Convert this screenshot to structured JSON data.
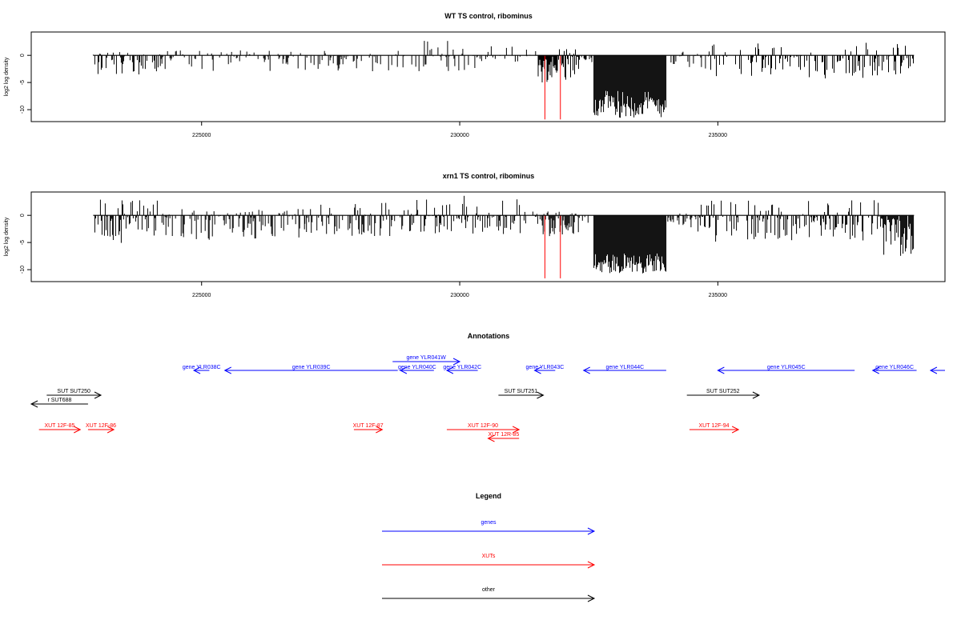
{
  "chart_data": [
    {
      "type": "bar",
      "title": "WT TS control, ribominus",
      "xlabel": "",
      "ylabel": "log2 log density",
      "xlim": [
        221700,
        239400
      ],
      "ylim": [
        -12.2,
        4.3
      ],
      "x_ticks": [
        225000,
        230000,
        235000
      ],
      "y_ticks": [
        0,
        -5,
        -10
      ],
      "grid": false,
      "series": [
        {
          "color": "#000000",
          "segments": [
            {
              "x": [
                222900,
                224200
              ],
              "values": [
                -3.6,
                0.9
              ],
              "density": 0.55
            },
            {
              "x": [
                224200,
                229300
              ],
              "values": [
                -3.0,
                0.9
              ],
              "density": 0.3
            },
            {
              "x": [
                229300,
                230300
              ],
              "values": [
                -3.0,
                2.8
              ],
              "density": 0.4
            },
            {
              "x": [
                230300,
                231300
              ],
              "values": [
                -1.2,
                1.9
              ],
              "density": 0.35
            },
            {
              "x": [
                231300,
                231520
              ],
              "values": [
                -1.2,
                1.2
              ],
              "density": 0.3
            },
            {
              "x": [
                231520,
                231900
              ],
              "values": [
                -5.0,
                0
              ],
              "density": 1.0
            },
            {
              "x": [
                231900,
                232330
              ],
              "values": [
                -4.6,
                1.2
              ],
              "density": 1.0
            },
            {
              "x": [
                232330,
                232420
              ],
              "values": [
                -1.2,
                0
              ],
              "density": 0.5
            },
            {
              "x": [
                232420,
                232600
              ],
              "values": [
                -1.5,
                0
              ],
              "density": 0.5
            },
            {
              "x": [
                232600,
                234000
              ],
              "values": [
                -11.5,
                -6.5
              ],
              "density": 1.0
            },
            {
              "x": [
                234000,
                234800
              ],
              "values": [
                -2.6,
                0.8
              ],
              "density": 0.3
            },
            {
              "x": [
                234800,
                238800
              ],
              "values": [
                -4.3,
                2.4
              ],
              "density": 0.45
            }
          ]
        },
        {
          "color": "#ff0000",
          "x": [
            231650,
            231950
          ],
          "values": [
            -11.8,
            -11.8
          ]
        }
      ]
    },
    {
      "type": "bar",
      "title": "xrn1 TS control, ribominus",
      "xlabel": "",
      "ylabel": "log2 log density",
      "xlim": [
        221700,
        239400
      ],
      "ylim": [
        -12.2,
        4.3
      ],
      "x_ticks": [
        225000,
        230000,
        235000
      ],
      "y_ticks": [
        0,
        -5,
        -10
      ],
      "grid": false,
      "series": [
        {
          "color": "#000000",
          "segments": [
            {
              "x": [
                222900,
                224200
              ],
              "values": [
                -5.2,
                3.0
              ],
              "density": 0.65
            },
            {
              "x": [
                224200,
                227000
              ],
              "values": [
                -4.5,
                1.2
              ],
              "density": 0.55
            },
            {
              "x": [
                227000,
                229000
              ],
              "values": [
                -4.0,
                2.5
              ],
              "density": 0.5
            },
            {
              "x": [
                229000,
                231200
              ],
              "values": [
                -3.5,
                3.6
              ],
              "density": 0.6
            },
            {
              "x": [
                231200,
                231600
              ],
              "values": [
                -2.0,
                0.8
              ],
              "density": 0.4
            },
            {
              "x": [
                231600,
                232300
              ],
              "values": [
                -4.3,
                0.8
              ],
              "density": 1.0
            },
            {
              "x": [
                232300,
                232600
              ],
              "values": [
                -1.5,
                0
              ],
              "density": 0.5
            },
            {
              "x": [
                232600,
                234000
              ],
              "values": [
                -10.7,
                -7.0
              ],
              "density": 1.0
            },
            {
              "x": [
                234000,
                234600
              ],
              "values": [
                -2.3,
                0.6
              ],
              "density": 0.4
            },
            {
              "x": [
                234600,
                238200
              ],
              "values": [
                -5.0,
                2.9
              ],
              "density": 0.55
            },
            {
              "x": [
                238200,
                238800
              ],
              "values": [
                -7.5,
                0
              ],
              "density": 1.0
            }
          ]
        },
        {
          "color": "#ff0000",
          "x": [
            231650,
            231950
          ],
          "values": [
            -11.6,
            -11.6
          ]
        }
      ]
    }
  ],
  "annotations": {
    "title": "Annotations",
    "genes": [
      {
        "label": "gene YLR038C",
        "x0": 224850,
        "x1": 225150,
        "dir": "-"
      },
      {
        "label": "gene YLR039C",
        "x0": 225450,
        "x1": 228800,
        "dir": "-"
      },
      {
        "label": "gene YLR041W",
        "x0": 228700,
        "x1": 230000,
        "dir": "+"
      },
      {
        "label": "gene YLR040C",
        "x0": 228850,
        "x1": 229500,
        "dir": "-"
      },
      {
        "label": "gene YLR042C",
        "x0": 229750,
        "x1": 230350,
        "dir": "-"
      },
      {
        "label": "gene YLR043C",
        "x0": 231450,
        "x1": 231850,
        "dir": "-"
      },
      {
        "label": "gene YLR044C",
        "x0": 232400,
        "x1": 234000,
        "dir": "-"
      },
      {
        "label": "gene YLR045C",
        "x0": 235000,
        "x1": 237650,
        "dir": "-"
      },
      {
        "label": "gene YLR046C",
        "x0": 238000,
        "x1": 238850,
        "dir": "-"
      },
      {
        "label": "",
        "x0": 239120,
        "x1": 239400,
        "dir": "-"
      }
    ],
    "other": [
      {
        "label": "SUT SUT250",
        "x0": 222000,
        "x1": 223050,
        "dir": "+",
        "row": 0
      },
      {
        "label": "r SUT688",
        "x0": 221700,
        "x1": 222800,
        "dir": "-",
        "row": 1
      },
      {
        "label": "SUT SUT251",
        "x0": 230750,
        "x1": 231620,
        "dir": "+",
        "row": 0
      },
      {
        "label": "SUT SUT252",
        "x0": 234400,
        "x1": 235800,
        "dir": "+",
        "row": 0
      }
    ],
    "xuts": [
      {
        "label": "XUT 12F-85",
        "x0": 221850,
        "x1": 222650,
        "dir": "+",
        "row": 0
      },
      {
        "label": "XUT 12F-86",
        "x0": 222800,
        "x1": 223300,
        "dir": "+",
        "row": 0
      },
      {
        "label": "XUT 12F-87",
        "x0": 227950,
        "x1": 228500,
        "dir": "+",
        "row": 0
      },
      {
        "label": "XUT 12F-90",
        "x0": 229750,
        "x1": 231150,
        "dir": "+",
        "row": 0
      },
      {
        "label": "XUT 12R-85",
        "x0": 230550,
        "x1": 231150,
        "dir": "-",
        "row": 1
      },
      {
        "label": "XUT 12F-94",
        "x0": 234450,
        "x1": 235400,
        "dir": "+",
        "row": 0
      }
    ]
  },
  "legend": {
    "title": "Legend",
    "items": [
      {
        "label": "genes",
        "color": "#0000ff"
      },
      {
        "label": "XUTs",
        "color": "#ff0000"
      },
      {
        "label": "other",
        "color": "#000000"
      }
    ]
  }
}
